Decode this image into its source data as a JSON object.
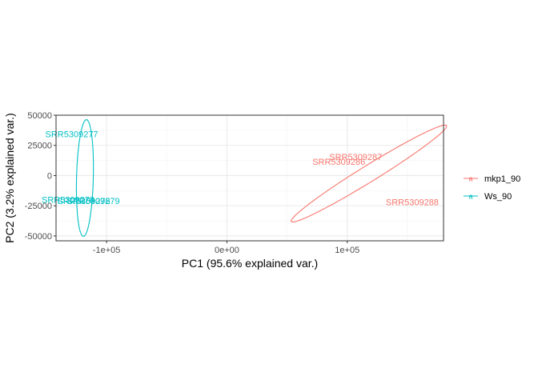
{
  "chart_data": {
    "type": "scatter",
    "xlabel": "PC1 (95.6% explained var.)",
    "ylabel": "PC2 (3.2% explained var.)",
    "xlim": [
      -142000,
      180000
    ],
    "ylim": [
      -54000,
      50000
    ],
    "x_ticks": [
      -100000,
      0,
      100000
    ],
    "x_tick_labels": [
      "-1e+05",
      "0e+00",
      "1e+05"
    ],
    "y_ticks": [
      -50000,
      -25000,
      0,
      25000,
      50000
    ],
    "y_tick_labels": [
      "-50000",
      "-25000",
      "0",
      "25000",
      "50000"
    ],
    "grid": true,
    "legend_position": "right",
    "series": [
      {
        "name": "mkp1_90",
        "color": "#F8766D",
        "points": [
          {
            "label": "SRR5309287",
            "x": 107000,
            "y": 15500
          },
          {
            "label": "SRR5309286",
            "x": 93000,
            "y": 11500
          },
          {
            "label": "SRR5309288",
            "x": 154000,
            "y": -22000
          }
        ],
        "ellipse": {
          "center": [
            118000,
            1700
          ],
          "semi_major": 76000,
          "semi_minor": 6800,
          "angle_deg": 31.5
        }
      },
      {
        "name": "Ws_90",
        "color": "#00BFC4",
        "points": [
          {
            "label": "SRR5309277",
            "x": -129000,
            "y": 34500
          },
          {
            "label": "SRR5309278",
            "x": -132000,
            "y": -20000
          },
          {
            "label": "SRR5309276",
            "x": -119000,
            "y": -21000
          },
          {
            "label": "SRR5309279",
            "x": -111000,
            "y": -21000
          }
        ],
        "ellipse": {
          "center": [
            -118000,
            -2000
          ],
          "semi_major": 48300,
          "semi_minor": 7000,
          "angle_deg": 88.5
        }
      }
    ]
  }
}
